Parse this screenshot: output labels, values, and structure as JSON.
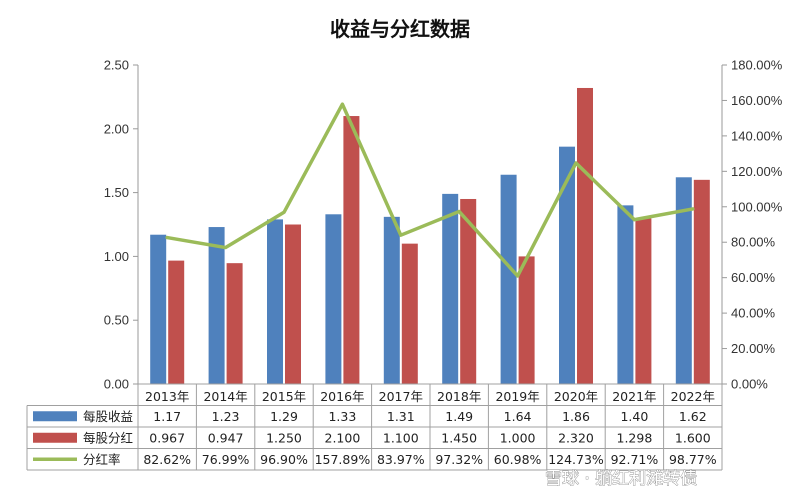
{
  "chart_data": {
    "type": "bar",
    "title": "收益与分红数据",
    "categories": [
      "2013年",
      "2014年",
      "2015年",
      "2016年",
      "2017年",
      "2018年",
      "2019年",
      "2020年",
      "2021年",
      "2022年"
    ],
    "series": [
      {
        "name": "每股收益",
        "type": "bar",
        "axis": "left",
        "color": "#4F81BD",
        "values": [
          1.17,
          1.23,
          1.29,
          1.33,
          1.31,
          1.49,
          1.64,
          1.86,
          1.4,
          1.62
        ],
        "labels": [
          "1.17",
          "1.23",
          "1.29",
          "1.33",
          "1.31",
          "1.49",
          "1.64",
          "1.86",
          "1.40",
          "1.62"
        ]
      },
      {
        "name": "每股分红",
        "type": "bar",
        "axis": "left",
        "color": "#C0504D",
        "values": [
          0.967,
          0.947,
          1.25,
          2.1,
          1.1,
          1.45,
          1.0,
          2.32,
          1.298,
          1.6
        ],
        "labels": [
          "0.967",
          "0.947",
          "1.250",
          "2.100",
          "1.100",
          "1.450",
          "1.000",
          "2.320",
          "1.298",
          "1.600"
        ]
      },
      {
        "name": "分红率",
        "type": "line",
        "axis": "right",
        "color": "#9BBB59",
        "values": [
          82.62,
          76.99,
          96.9,
          157.89,
          83.97,
          97.32,
          60.98,
          124.73,
          92.71,
          98.77
        ],
        "labels": [
          "82.62%",
          "76.99%",
          "96.90%",
          "157.89%",
          "83.97%",
          "97.32%",
          "60.98%",
          "124.73%",
          "92.71%",
          "98.77%"
        ]
      }
    ],
    "y_left": {
      "min": 0,
      "max": 2.5,
      "ticks": [
        "0.00",
        "0.50",
        "1.00",
        "1.50",
        "2.00",
        "2.50"
      ]
    },
    "y_right": {
      "min": 0,
      "max": 180,
      "ticks": [
        "0.00%",
        "20.00%",
        "40.00%",
        "60.00%",
        "80.00%",
        "100.00%",
        "120.00%",
        "140.00%",
        "160.00%",
        "180.00%"
      ]
    },
    "grid": false,
    "legend": "data-table"
  },
  "watermark": "雪球 · 躺红利滩转债"
}
